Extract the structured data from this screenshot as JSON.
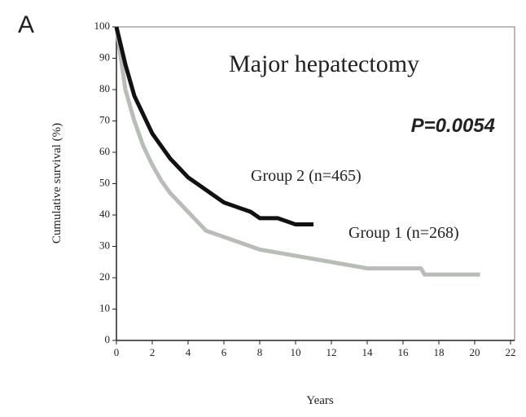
{
  "chart_data": {
    "type": "line",
    "panel_label": "A",
    "title": "Major hepatectomy",
    "annotation": "P=0.0054",
    "xlabel": "Years",
    "ylabel": "Cumulative survival (%)",
    "xlim": [
      0,
      22
    ],
    "ylim": [
      0,
      100
    ],
    "xticks": [
      0,
      2,
      4,
      6,
      8,
      10,
      12,
      14,
      16,
      18,
      20,
      22
    ],
    "yticks": [
      0,
      10,
      20,
      30,
      40,
      50,
      60,
      70,
      80,
      90,
      100
    ],
    "series": [
      {
        "name": "Group 1 (n=268)",
        "color": "#b8bdb8",
        "x": [
          0,
          0.5,
          1,
          1.5,
          2,
          2.5,
          3,
          3.5,
          4,
          4.5,
          5,
          6,
          7,
          8,
          9,
          10,
          11,
          12,
          13,
          14,
          15,
          16,
          17,
          17.2,
          18,
          19,
          20.3
        ],
        "values": [
          100,
          80,
          70,
          62,
          56,
          51,
          47,
          44,
          41,
          38,
          35,
          33,
          31,
          29,
          28,
          27,
          26,
          25,
          24,
          23,
          23,
          23,
          23,
          21,
          21,
          21,
          21
        ]
      },
      {
        "name": "Group 2 (n=465)",
        "color": "#111111",
        "x": [
          0,
          0.5,
          1,
          1.5,
          2,
          2.5,
          3,
          3.5,
          4,
          4.5,
          5,
          5.5,
          6,
          6.5,
          7,
          7.5,
          8,
          8.5,
          9,
          9.5,
          10,
          11
        ],
        "values": [
          100,
          88,
          78,
          72,
          66,
          62,
          58,
          55,
          52,
          50,
          48,
          46,
          44,
          43,
          42,
          41,
          39,
          39,
          39,
          38,
          37,
          37
        ]
      }
    ]
  }
}
